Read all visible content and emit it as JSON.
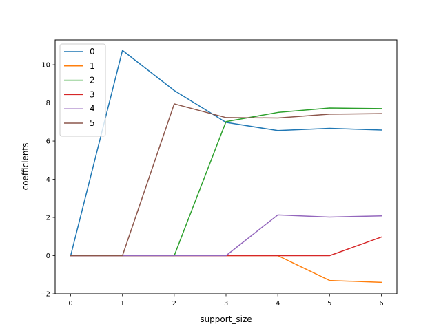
{
  "chart_data": {
    "type": "line",
    "title": "",
    "xlabel": "support_size",
    "ylabel": "coefficients",
    "x": [
      0,
      1,
      2,
      3,
      4,
      5,
      6
    ],
    "xlim": [
      -0.3,
      6.3
    ],
    "ylim": [
      -2.0,
      11.3
    ],
    "x_ticks": [
      "0",
      "1",
      "2",
      "3",
      "4",
      "5",
      "6"
    ],
    "y_ticks": [
      "−2",
      "0",
      "2",
      "4",
      "6",
      "8",
      "10"
    ],
    "grid": false,
    "legend_position": "top-left",
    "series": [
      {
        "name": "0",
        "color": "#1f77b4",
        "values": [
          0,
          10.75,
          8.65,
          6.98,
          6.55,
          6.67,
          6.58
        ]
      },
      {
        "name": "1",
        "color": "#ff7f0e",
        "values": [
          0,
          0,
          0,
          0,
          0,
          -1.3,
          -1.4
        ]
      },
      {
        "name": "2",
        "color": "#2ca02c",
        "values": [
          0,
          0,
          0,
          7.02,
          7.5,
          7.73,
          7.7
        ]
      },
      {
        "name": "3",
        "color": "#d62728",
        "values": [
          0,
          0,
          0,
          0,
          0,
          0,
          0.97
        ]
      },
      {
        "name": "4",
        "color": "#9467bd",
        "values": [
          0,
          0,
          0,
          0,
          2.13,
          2.02,
          2.08
        ]
      },
      {
        "name": "5",
        "color": "#8c564b",
        "values": [
          0,
          0,
          7.95,
          7.23,
          7.21,
          7.41,
          7.44
        ]
      }
    ]
  }
}
